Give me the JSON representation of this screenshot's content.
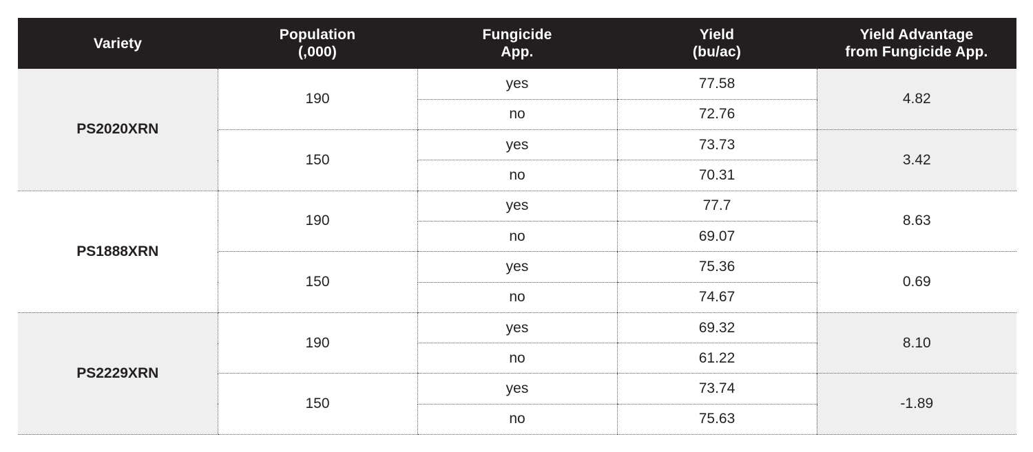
{
  "table": {
    "headers": [
      {
        "line1": "Variety",
        "line2": ""
      },
      {
        "line1": "Population",
        "line2": "(,000)"
      },
      {
        "line1": "Fungicide",
        "line2": "App."
      },
      {
        "line1": "Yield",
        "line2": "(bu/ac)"
      },
      {
        "line1": "Yield Advantage",
        "line2": "from Fungicide App."
      }
    ],
    "groups": [
      {
        "variety": "PS2020XRN",
        "populations": [
          {
            "population": "190",
            "advantage": "4.82",
            "rows": [
              {
                "app": "yes",
                "yield": "77.58"
              },
              {
                "app": "no",
                "yield": "72.76"
              }
            ]
          },
          {
            "population": "150",
            "advantage": "3.42",
            "rows": [
              {
                "app": "yes",
                "yield": "73.73"
              },
              {
                "app": "no",
                "yield": "70.31"
              }
            ]
          }
        ]
      },
      {
        "variety": "PS1888XRN",
        "populations": [
          {
            "population": "190",
            "advantage": "8.63",
            "rows": [
              {
                "app": "yes",
                "yield": "77.7"
              },
              {
                "app": "no",
                "yield": "69.07"
              }
            ]
          },
          {
            "population": "150",
            "advantage": "0.69",
            "rows": [
              {
                "app": "yes",
                "yield": "75.36"
              },
              {
                "app": "no",
                "yield": "74.67"
              }
            ]
          }
        ]
      },
      {
        "variety": "PS2229XRN",
        "populations": [
          {
            "population": "190",
            "advantage": "8.10",
            "rows": [
              {
                "app": "yes",
                "yield": "69.32"
              },
              {
                "app": "no",
                "yield": "61.22"
              }
            ]
          },
          {
            "population": "150",
            "advantage": "-1.89",
            "rows": [
              {
                "app": "yes",
                "yield": "73.74"
              },
              {
                "app": "no",
                "yield": "75.63"
              }
            ]
          }
        ]
      }
    ],
    "colors": {
      "header_bg": "#231f20",
      "header_text": "#ffffff",
      "shaded_bg": "#efefef",
      "body_text": "#231f20"
    }
  }
}
